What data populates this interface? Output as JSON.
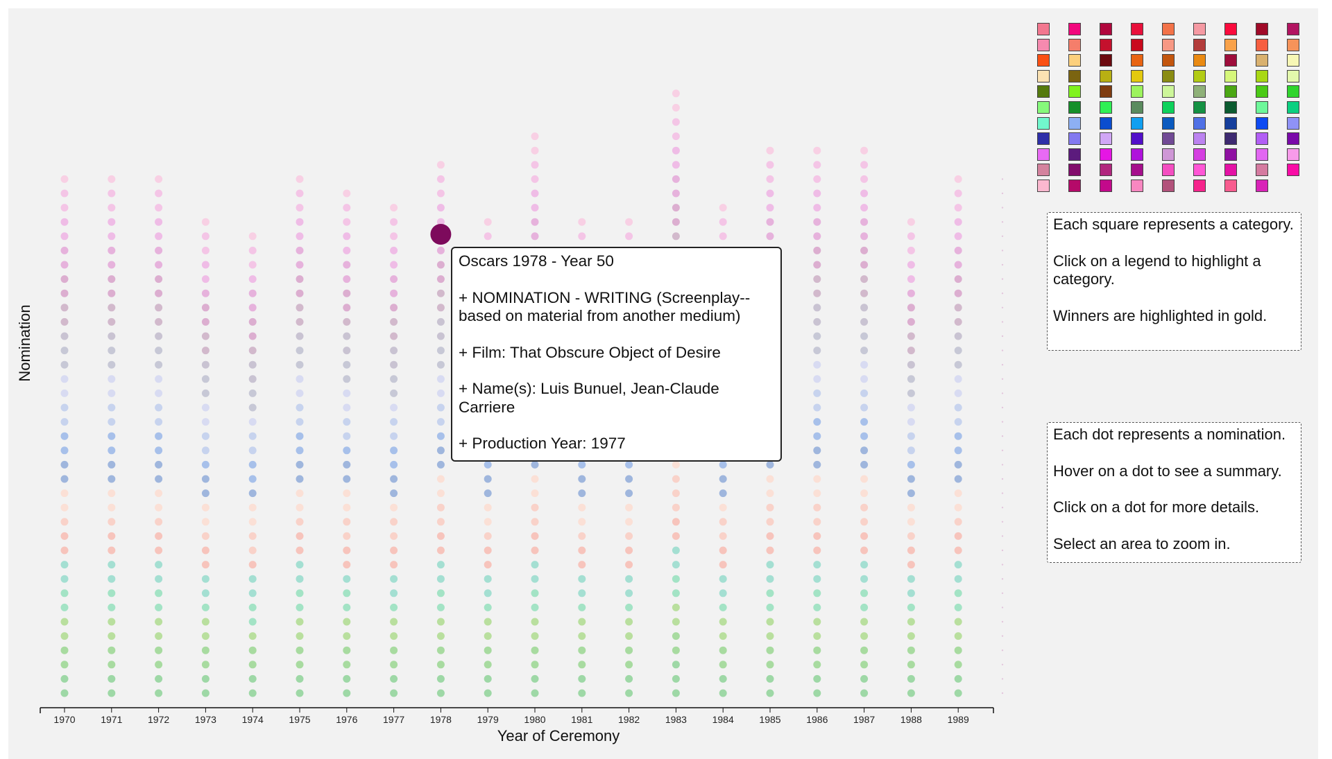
{
  "chart_data": {
    "type": "scatter",
    "title": "",
    "xlabel": "Year of Ceremony",
    "ylabel": "Nomination",
    "categories": [
      "1970",
      "1971",
      "1972",
      "1973",
      "1974",
      "1975",
      "1976",
      "1977",
      "1978",
      "1979",
      "1980",
      "1981",
      "1982",
      "1983",
      "1984",
      "1985",
      "1986",
      "1987",
      "1988",
      "1989"
    ],
    "nominations_per_year": [
      37,
      37,
      37,
      34,
      33,
      37,
      36,
      35,
      38,
      34,
      40,
      34,
      34,
      43,
      35,
      39,
      39,
      39,
      34,
      37
    ],
    "dot_colors": [
      "#9ed8a6",
      "#a8dba0",
      "#b9df9e",
      "#a3e3c5",
      "#a4dfd2",
      "#f7c4bc",
      "#f9d2c9",
      "#fbe0d6",
      "#9fb6dd",
      "#a7c0ea",
      "#c7d3ee",
      "#d8dbf2",
      "#c7c8d6",
      "#c9c3d2",
      "#d2b9cc",
      "#dcaed0",
      "#e6b2dc",
      "#efbce6",
      "#f4c5e6",
      "#f8d0e4"
    ],
    "hovered_point": {
      "year": "1978",
      "color": "#7d0a5c"
    },
    "grid": false
  },
  "legend": {
    "swatches": [
      "#f2778f",
      "#f2077d",
      "#b0073d",
      "#e8103b",
      "#f37349",
      "#f59aa3",
      "#fb0b3d",
      "#a00a28",
      "#b21461",
      "#f58aaf",
      "#f57e6b",
      "#c4112d",
      "#c90a1d",
      "#f79884",
      "#b33c3b",
      "#f9a24a",
      "#f65e40",
      "#f6935a",
      "#fa5013",
      "#fcd07d",
      "#6c0a10",
      "#e86413",
      "#c3560e",
      "#ea8a12",
      "#9e0d3b",
      "#d9b16f",
      "#f7f7b5",
      "#fbe2b3",
      "#7b6410",
      "#b8b013",
      "#e3c90f",
      "#8a8c13",
      "#b3cc15",
      "#d6f77b",
      "#a9d814",
      "#e3f9ac",
      "#557a0e",
      "#80f21d",
      "#7f3c10",
      "#9df35d",
      "#cdf69a",
      "#8fb179",
      "#4ba714",
      "#4bca16",
      "#2fd42d",
      "#86f97b",
      "#15902a",
      "#2ff054",
      "#5a8b5e",
      "#0ed15b",
      "#159143",
      "#0b5b30",
      "#6ef79a",
      "#0bd080",
      "#71f7cd",
      "#8db0f4",
      "#0a4dcf",
      "#119ff0",
      "#0b5abf",
      "#5071e6",
      "#163f9c",
      "#0e4af2",
      "#8f92f7",
      "#2e2fa8",
      "#8379f0",
      "#d1a7f6",
      "#520fc9",
      "#714a95",
      "#bc83f0",
      "#3e2a71",
      "#b25ff5",
      "#7a0aa9",
      "#e86af4",
      "#5c1b7d",
      "#e516e4",
      "#af12dc",
      "#cf97d6",
      "#d53fe1",
      "#8f11a2",
      "#e266f2",
      "#f79bea",
      "#d4839e",
      "#820c6c",
      "#b1267e",
      "#a50f8c",
      "#f44ec1",
      "#ff56d6",
      "#e412a5",
      "#d57ba0",
      "#f90ca6",
      "#fbb8cf",
      "#b50a69",
      "#c3098b",
      "#f887c1",
      "#b2527b",
      "#f6248c",
      "#f85c8f",
      "#d923b8"
    ]
  },
  "info": {
    "legend_lines": [
      "Each square represents a category.",
      "Click on a legend to highlight a category.",
      "Winners are highlighted in gold."
    ],
    "dot_lines": [
      "Each dot represents a nomination.",
      "Hover on a dot to see a summary.",
      "Click on a dot for more details.",
      "Select an area to zoom in."
    ]
  },
  "tooltip": {
    "title": "Oscars 1978 - Year 50",
    "nomination": "+ NOMINATION - WRITING (Screenplay--based on material from another medium)",
    "film": "+ Film: That Obscure Object of Desire",
    "names": "+ Name(s): Luis Bunuel, Jean-Claude Carriere",
    "production_year": "+ Production Year: 1977"
  }
}
